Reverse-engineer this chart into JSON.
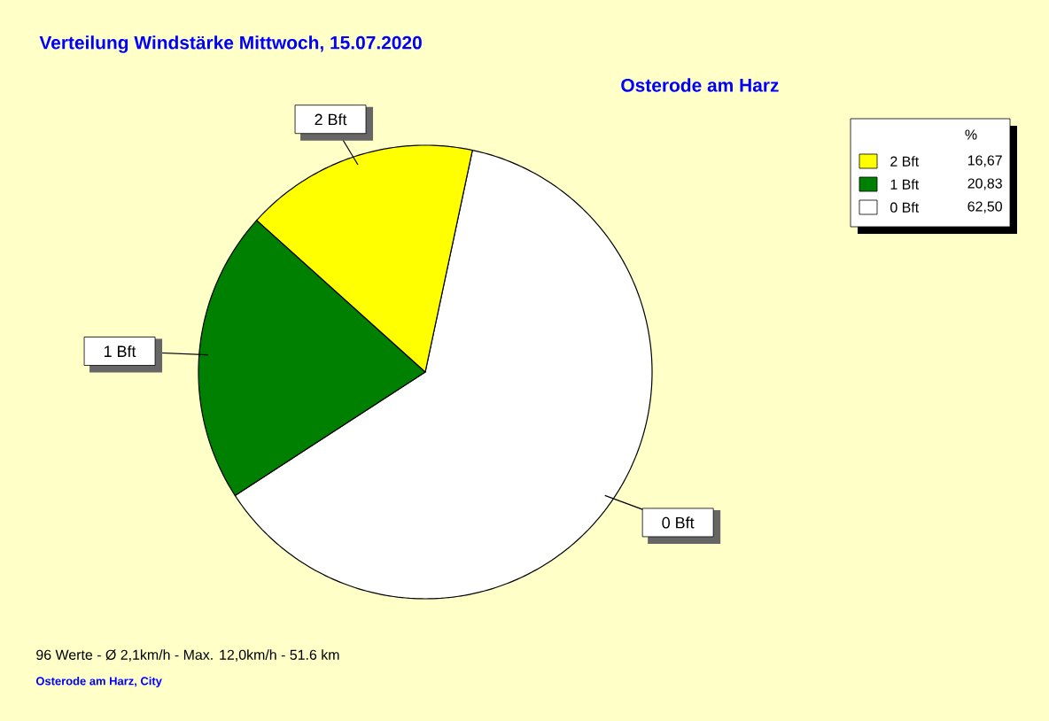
{
  "chart_data": {
    "type": "pie",
    "title": "Verteilung Windstärke  Mittwoch, 15.07.2020",
    "subtitle": "Osterode am Harz",
    "categories": [
      "2 Bft",
      "1 Bft",
      "0 Bft"
    ],
    "values": [
      16.67,
      20.83,
      62.5
    ],
    "value_labels": [
      "16,67",
      "20,83",
      "62,50"
    ],
    "colors": [
      "#ffff00",
      "#008000",
      "#ffffff"
    ],
    "legend": "top right",
    "legend_title": "%",
    "annotations": [
      "96 Werte   -   Ø 2,1km/h  -  Max. 12,0km/h   -   51.6 km",
      "Osterode am Harz, City"
    ]
  }
}
